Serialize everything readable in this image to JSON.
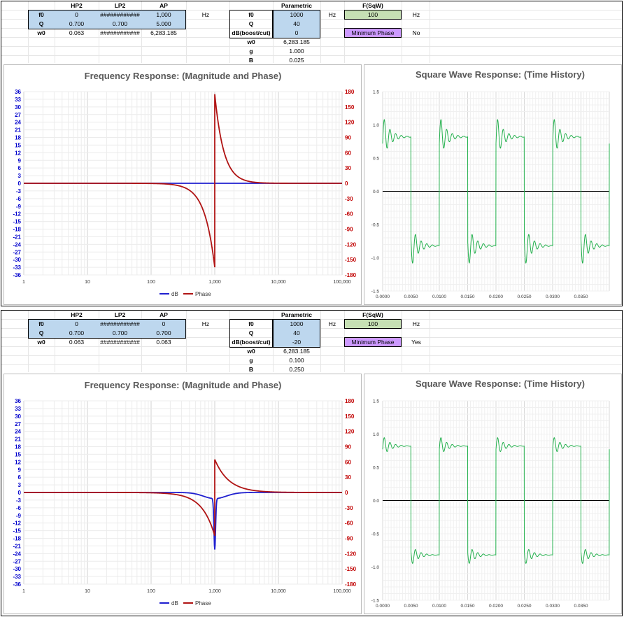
{
  "panels": [
    {
      "table": {
        "col_headers": [
          "HP2",
          "LP2",
          "AP"
        ],
        "rows": [
          {
            "label": "f0",
            "values": [
              "0",
              "############",
              "1,000"
            ]
          },
          {
            "label": "Q",
            "values": [
              "0.700",
              "0.700",
              "5.000"
            ]
          },
          {
            "label": "w0",
            "values": [
              "0.063",
              "############",
              "6,283.185"
            ]
          }
        ],
        "unit": "Hz"
      },
      "parametric": {
        "title": "Parametric",
        "rows": [
          {
            "label": "f0",
            "value": "1000",
            "unit": "Hz"
          },
          {
            "label": "Q",
            "value": "40"
          },
          {
            "label": "dB(boost/cut)",
            "value": "0"
          },
          {
            "label": "w0",
            "value": "6,283.185"
          },
          {
            "label": "g",
            "value": "1.000"
          },
          {
            "label": "B",
            "value": "0.025"
          }
        ]
      },
      "sqw": {
        "title": "F(SqW)",
        "value": "100",
        "unit": "Hz",
        "min_phase_label": "Minimum Phase",
        "min_phase_value": "No"
      },
      "freq_title": "Frequency Response: (Magnitude and Phase)",
      "sq_title": "Square Wave Response: (Time History)"
    },
    {
      "table": {
        "col_headers": [
          "HP2",
          "LP2",
          "AP"
        ],
        "rows": [
          {
            "label": "f0",
            "values": [
              "0",
              "############",
              "0"
            ]
          },
          {
            "label": "Q",
            "values": [
              "0.700",
              "0.700",
              "0.700"
            ]
          },
          {
            "label": "w0",
            "values": [
              "0.063",
              "############",
              "0.063"
            ]
          }
        ],
        "unit": "Hz"
      },
      "parametric": {
        "title": "Parametric",
        "rows": [
          {
            "label": "f0",
            "value": "1000",
            "unit": "Hz"
          },
          {
            "label": "Q",
            "value": "40"
          },
          {
            "label": "dB(boost/cut)",
            "value": "-20"
          },
          {
            "label": "w0",
            "value": "6,283.185"
          },
          {
            "label": "g",
            "value": "0.100"
          },
          {
            "label": "B",
            "value": "0.250"
          }
        ]
      },
      "sqw": {
        "title": "F(SqW)",
        "value": "100",
        "unit": "Hz",
        "min_phase_label": "Minimum Phase",
        "min_phase_value": "Yes"
      },
      "freq_title": "Frequency Response: (Magnitude and Phase)",
      "sq_title": "Square Wave Response: (Time History)"
    }
  ],
  "chart_data": [
    {
      "type": "line",
      "title": "Frequency Response: (Magnitude and Phase)",
      "x_scale": "log",
      "xlim": [
        1,
        100000
      ],
      "x_ticks": [
        "1",
        "10",
        "100",
        "1,000",
        "10,000",
        "100,000"
      ],
      "y_left_lim": [
        -36,
        36
      ],
      "y_right_lim": [
        -180,
        180
      ],
      "legend": "bottom",
      "colors": {
        "dB": "#1f1fcf",
        "Phase": "#b01414"
      },
      "series": [
        {
          "name": "dB",
          "axis": "left",
          "shape": "flat",
          "value_db": 0
        },
        {
          "name": "Phase",
          "axis": "right",
          "shape": "allpass_jump",
          "f0": 1000,
          "phase_min_deg": -165,
          "phase_max_deg": 175
        }
      ]
    },
    {
      "type": "line",
      "title": "Square Wave Response: (Time History)",
      "xlim": [
        0,
        0.04
      ],
      "x_ticks": [
        "0.0000",
        "0.0050",
        "0.0100",
        "0.0150",
        "0.0200",
        "0.0250",
        "0.0300",
        "0.0350"
      ],
      "ylim": [
        -1.5,
        1.5
      ],
      "y_ticks": [
        "1.5",
        "1.0",
        "0.5",
        "0.0",
        "-0.5",
        "-1.0",
        "-1.5"
      ],
      "color": "#22b04c",
      "period_s": 0.01,
      "settle_level": 0.82,
      "overshoot_peak": 1.15,
      "ringing_freq_hz": 1000
    },
    {
      "type": "line",
      "title": "Frequency Response: (Magnitude and Phase)",
      "x_scale": "log",
      "xlim": [
        1,
        100000
      ],
      "x_ticks": [
        "1",
        "10",
        "100",
        "1,000",
        "10,000",
        "100,000"
      ],
      "y_left_lim": [
        -36,
        36
      ],
      "y_right_lim": [
        -180,
        180
      ],
      "legend": "bottom",
      "colors": {
        "dB": "#1f1fcf",
        "Phase": "#b01414"
      },
      "series": [
        {
          "name": "dB",
          "axis": "left",
          "shape": "notch",
          "f0": 1000,
          "depth_db": -20
        },
        {
          "name": "Phase",
          "axis": "right",
          "shape": "notch_phase",
          "f0": 1000,
          "phase_min_deg": -85,
          "phase_max_deg": 65
        }
      ]
    },
    {
      "type": "line",
      "title": "Square Wave Response: (Time History)",
      "xlim": [
        0,
        0.04
      ],
      "x_ticks": [
        "0.0000",
        "0.0050",
        "0.0100",
        "0.0150",
        "0.0200",
        "0.0250",
        "0.0300",
        "0.0350"
      ],
      "ylim": [
        -1.5,
        1.5
      ],
      "y_ticks": [
        "1.5",
        "1.0",
        "0.5",
        "0.0",
        "-0.5",
        "-1.0",
        "-1.5"
      ],
      "color": "#22b04c",
      "period_s": 0.01,
      "settle_level": 0.82,
      "overshoot_peak": 0.98,
      "ringing_freq_hz": 1000
    }
  ]
}
